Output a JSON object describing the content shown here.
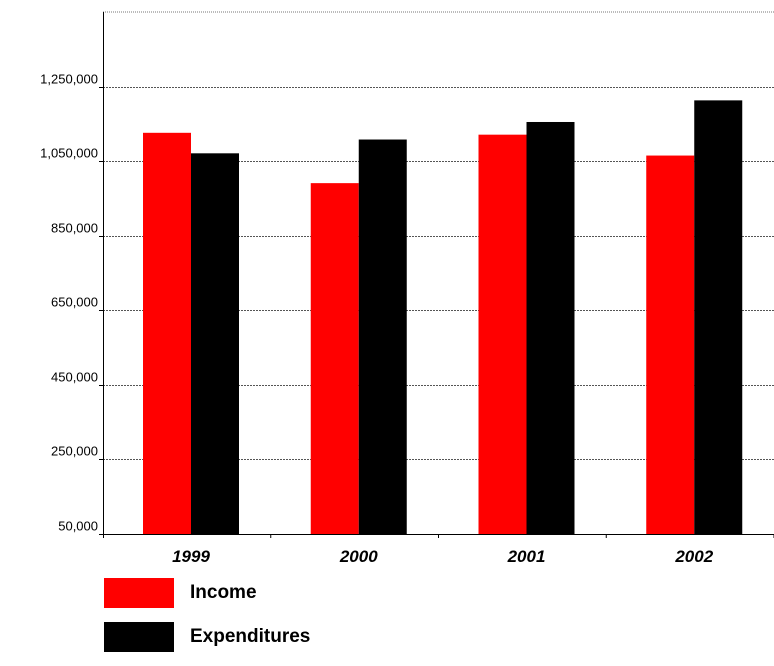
{
  "chart_data": {
    "type": "bar",
    "categories": [
      "1999",
      "2000",
      "2001",
      "2002"
    ],
    "series": [
      {
        "name": "Income",
        "color": "#ff0000",
        "values": [
          1126000,
          991000,
          1121000,
          1065000
        ]
      },
      {
        "name": "Expenditures",
        "color": "#000000",
        "values": [
          1071000,
          1108000,
          1155000,
          1213000
        ]
      }
    ],
    "yticks": [
      "50,000",
      "250,000",
      "450,000",
      "650,000",
      "850,000",
      "1,050,000",
      "1,250,000"
    ],
    "ylim": [
      50000,
      1450000
    ],
    "grid": true,
    "legend_position": "bottom-left"
  }
}
